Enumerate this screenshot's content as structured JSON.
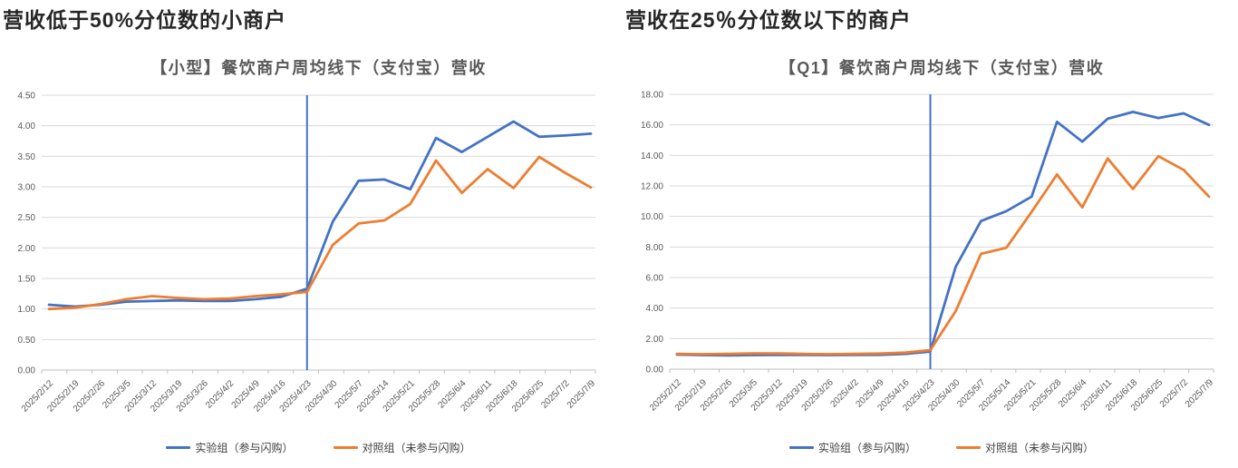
{
  "page": {
    "background": "#ffffff"
  },
  "panels": [
    {
      "heading": "营收低于50%分位数的小商户"
    },
    {
      "heading": "营收在25％分位数以下的商户"
    }
  ],
  "colors": {
    "treatment_blue": "#4472C4",
    "control_orange": "#ED7D31",
    "gridline": "#D9D9D9",
    "axis_line": "#BFBFBF",
    "tick_text": "#595959",
    "heading_text": "#262626",
    "title_text": "#595959",
    "vline_blue": "#4472C4"
  },
  "chart_data": [
    {
      "type": "line",
      "title": "【小型】餐饮商户周均线下（支付宝）营收",
      "xlabel": "",
      "ylabel": "",
      "grid": true,
      "legend_position": "bottom",
      "x": [
        "2025/2/12",
        "2025/2/19",
        "2025/2/26",
        "2025/3/5",
        "2025/3/12",
        "2025/3/19",
        "2025/3/26",
        "2025/4/2",
        "2025/4/9",
        "2025/4/16",
        "2025/4/23",
        "2025/4/30",
        "2025/5/7",
        "2025/5/14",
        "2025/5/21",
        "2025/5/28",
        "2025/6/4",
        "2025/6/11",
        "2025/6/18",
        "2025/6/25",
        "2025/7/2",
        "2025/7/9"
      ],
      "series": [
        {
          "name": "实验组（参与闪购）",
          "color": "#4472C4",
          "values": [
            1.07,
            1.04,
            1.07,
            1.12,
            1.13,
            1.14,
            1.13,
            1.13,
            1.16,
            1.2,
            1.33,
            2.43,
            3.1,
            3.12,
            2.96,
            3.8,
            3.57,
            3.82,
            4.07,
            3.82,
            3.84,
            3.87
          ]
        },
        {
          "name": "对照组（未参与闪购）",
          "color": "#ED7D31",
          "values": [
            1.0,
            1.02,
            1.08,
            1.16,
            1.21,
            1.18,
            1.16,
            1.17,
            1.21,
            1.24,
            1.28,
            2.05,
            2.4,
            2.45,
            2.72,
            3.43,
            2.9,
            3.29,
            2.98,
            3.49,
            3.23,
            2.99
          ]
        }
      ],
      "ylim": [
        0,
        4.5
      ],
      "ytick_step": 0.5,
      "ytick_labels": [
        "0.00",
        "0.50",
        "1.00",
        "1.50",
        "2.00",
        "2.50",
        "3.00",
        "3.50",
        "4.00",
        "4.50"
      ],
      "vline_x": "2025/4/23",
      "vline_color": "#4472C4"
    },
    {
      "type": "line",
      "title": "【Q1】餐饮商户周均线下（支付宝）营收",
      "xlabel": "",
      "ylabel": "",
      "grid": true,
      "legend_position": "bottom",
      "x": [
        "2025/2/12",
        "2025/2/19",
        "2025/2/26",
        "2025/3/5",
        "2025/3/12",
        "2025/3/19",
        "2025/3/26",
        "2025/4/2",
        "2025/4/9",
        "2025/4/16",
        "2025/4/23",
        "2025/4/30",
        "2025/5/7",
        "2025/5/14",
        "2025/5/21",
        "2025/5/28",
        "2025/6/4",
        "2025/6/11",
        "2025/6/18",
        "2025/6/25",
        "2025/7/2",
        "2025/7/9"
      ],
      "series": [
        {
          "name": "实验组（参与闪购）",
          "color": "#4472C4",
          "values": [
            0.95,
            0.92,
            0.9,
            0.92,
            0.93,
            0.93,
            0.92,
            0.93,
            0.94,
            1.0,
            1.15,
            6.7,
            9.7,
            10.35,
            11.3,
            16.2,
            14.9,
            16.4,
            16.85,
            16.45,
            16.75,
            16.0
          ]
        },
        {
          "name": "对照组（未参与闪购）",
          "color": "#ED7D31",
          "values": [
            1.0,
            0.98,
            1.0,
            1.03,
            1.03,
            1.0,
            0.98,
            1.0,
            1.02,
            1.08,
            1.25,
            3.8,
            7.55,
            7.95,
            10.3,
            12.75,
            10.6,
            13.8,
            11.8,
            13.95,
            13.05,
            11.3
          ]
        }
      ],
      "ylim": [
        0,
        18
      ],
      "ytick_step": 2,
      "ytick_labels": [
        "0.00",
        "2.00",
        "4.00",
        "6.00",
        "8.00",
        "10.00",
        "12.00",
        "14.00",
        "16.00",
        "18.00"
      ],
      "vline_x": "2025/4/23",
      "vline_color": "#4472C4"
    }
  ]
}
